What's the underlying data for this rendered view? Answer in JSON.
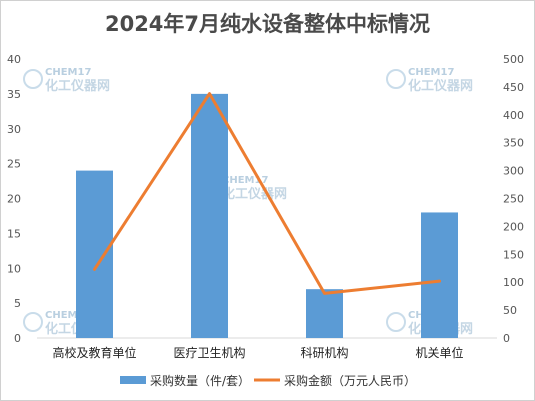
{
  "chart_data": {
    "type": "bar",
    "title": "2024年7月纯水设备整体中标情况",
    "categories": [
      "高校及教育单位",
      "医疗卫生机构",
      "科研机构",
      "机关单位"
    ],
    "series": [
      {
        "name": "采购数量（件/套）",
        "type": "bar",
        "axis": "left",
        "color": "#5B9BD5",
        "values": [
          24,
          35,
          7,
          18
        ]
      },
      {
        "name": "采购金额（万元人民币）",
        "type": "line",
        "axis": "right",
        "color": "#ED7D31",
        "values": [
          123,
          438,
          80,
          102
        ]
      }
    ],
    "y_left": {
      "range": [
        0,
        40
      ],
      "ticks": [
        "0",
        "5",
        "10",
        "15",
        "20",
        "25",
        "30",
        "35",
        "40"
      ]
    },
    "y_right": {
      "range": [
        0,
        500
      ],
      "ticks": [
        "0",
        "50",
        "100",
        "150",
        "200",
        "250",
        "300",
        "350",
        "400",
        "450",
        "500"
      ]
    },
    "grid": false,
    "legend_position": "bottom"
  },
  "watermark": {
    "brand": "CHEM17",
    "name": "化工仪器网"
  }
}
